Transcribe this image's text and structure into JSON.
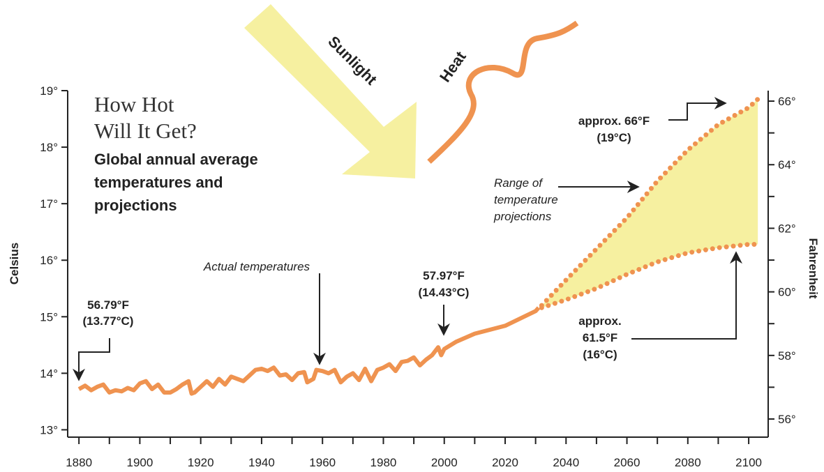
{
  "chart_data": {
    "type": "line",
    "title": [
      "How Hot",
      "Will It Get?"
    ],
    "subtitle": [
      "Global annual average",
      "temperatures and",
      "projections"
    ],
    "sunlight_label": "Sunlight",
    "heat_label": "Heat",
    "ylabel": "Celsius",
    "y2label": "Fahrenheit",
    "color": "#ef9350",
    "range_color": "#f6f0a0",
    "x": [
      1880,
      1882,
      1884,
      1886,
      1888,
      1890,
      1892,
      1894,
      1896,
      1898,
      1900,
      1902,
      1904,
      1906,
      1908,
      1910,
      1912,
      1914,
      1916,
      1917,
      1918,
      1920,
      1922,
      1924,
      1926,
      1928,
      1930,
      1932,
      1934,
      1936,
      1938,
      1940,
      1942,
      1944,
      1946,
      1948,
      1950,
      1952,
      1954,
      1955,
      1957,
      1958,
      1960,
      1962,
      1964,
      1966,
      1968,
      1970,
      1972,
      1974,
      1976,
      1978,
      1980,
      1982,
      1984,
      1986,
      1988,
      1990,
      1992,
      1994,
      1996,
      1998,
      1999,
      2000,
      2004,
      2010,
      2020,
      2030,
      2031
    ],
    "values": [
      13.72,
      13.78,
      13.7,
      13.76,
      13.8,
      13.66,
      13.7,
      13.68,
      13.74,
      13.7,
      13.82,
      13.86,
      13.72,
      13.8,
      13.66,
      13.66,
      13.72,
      13.8,
      13.86,
      13.64,
      13.66,
      13.76,
      13.86,
      13.76,
      13.9,
      13.8,
      13.94,
      13.9,
      13.86,
      13.96,
      14.06,
      14.08,
      14.04,
      14.1,
      13.96,
      13.98,
      13.88,
      14.0,
      14.02,
      13.84,
      13.9,
      14.06,
      14.04,
      14.0,
      14.06,
      13.84,
      13.94,
      14.0,
      13.88,
      14.08,
      13.86,
      14.06,
      14.1,
      14.16,
      14.04,
      14.2,
      14.22,
      14.28,
      14.14,
      14.24,
      14.32,
      14.46,
      14.32,
      14.43,
      14.56,
      14.7,
      14.84,
      15.1,
      15.16
    ],
    "projection": {
      "x": [
        2032,
        2040,
        2050,
        2060,
        2070,
        2080,
        2090,
        2100,
        2103
      ],
      "upper": [
        15.2,
        15.65,
        16.2,
        16.75,
        17.4,
        17.95,
        18.4,
        18.7,
        18.85
      ],
      "lower": [
        15.16,
        15.3,
        15.5,
        15.75,
        15.97,
        16.13,
        16.22,
        16.28,
        16.28
      ]
    },
    "xlim": [
      1876.3,
      2106.4
    ],
    "xticks": [
      1880,
      1900,
      1920,
      1940,
      1960,
      1980,
      2000,
      2020,
      2040,
      2060,
      2080,
      2100
    ],
    "xminor": [
      1890,
      1910,
      1930,
      1950,
      1970,
      1990,
      2010,
      2030,
      2050,
      2070,
      2090
    ],
    "ylim": [
      12.87,
      19
    ],
    "yticks": [
      {
        "value": 13,
        "label": "13°"
      },
      {
        "value": 14,
        "label": "14°"
      },
      {
        "value": 15,
        "label": "15°"
      },
      {
        "value": 16,
        "label": "16°"
      },
      {
        "value": 17,
        "label": "17°"
      },
      {
        "value": 18,
        "label": "18°"
      },
      {
        "value": 19,
        "label": "19°"
      }
    ],
    "y2lim": [
      55.43,
      66.33
    ],
    "y2ticks": [
      {
        "value": 56,
        "label": "56°"
      },
      {
        "value": 58,
        "label": "58°"
      },
      {
        "value": 60,
        "label": "60°"
      },
      {
        "value": 62,
        "label": "62°"
      },
      {
        "value": 64,
        "label": "64°"
      },
      {
        "value": 66,
        "label": "66°"
      }
    ],
    "y2minor": [
      57,
      59,
      61,
      63,
      65
    ],
    "annotations": [
      {
        "lines": [
          "56.79°F",
          "(13.77°C)"
        ]
      },
      {
        "lines": [
          "Actual temperatures"
        ]
      },
      {
        "lines": [
          "57.97°F",
          "(14.43°C)"
        ]
      },
      {
        "lines": [
          "approx. 66°F",
          "(19°C)"
        ]
      },
      {
        "lines": [
          "Range of",
          "temperature",
          "projections"
        ]
      },
      {
        "lines": [
          "approx.",
          "61.5°F",
          "(16°C)"
        ]
      }
    ]
  }
}
